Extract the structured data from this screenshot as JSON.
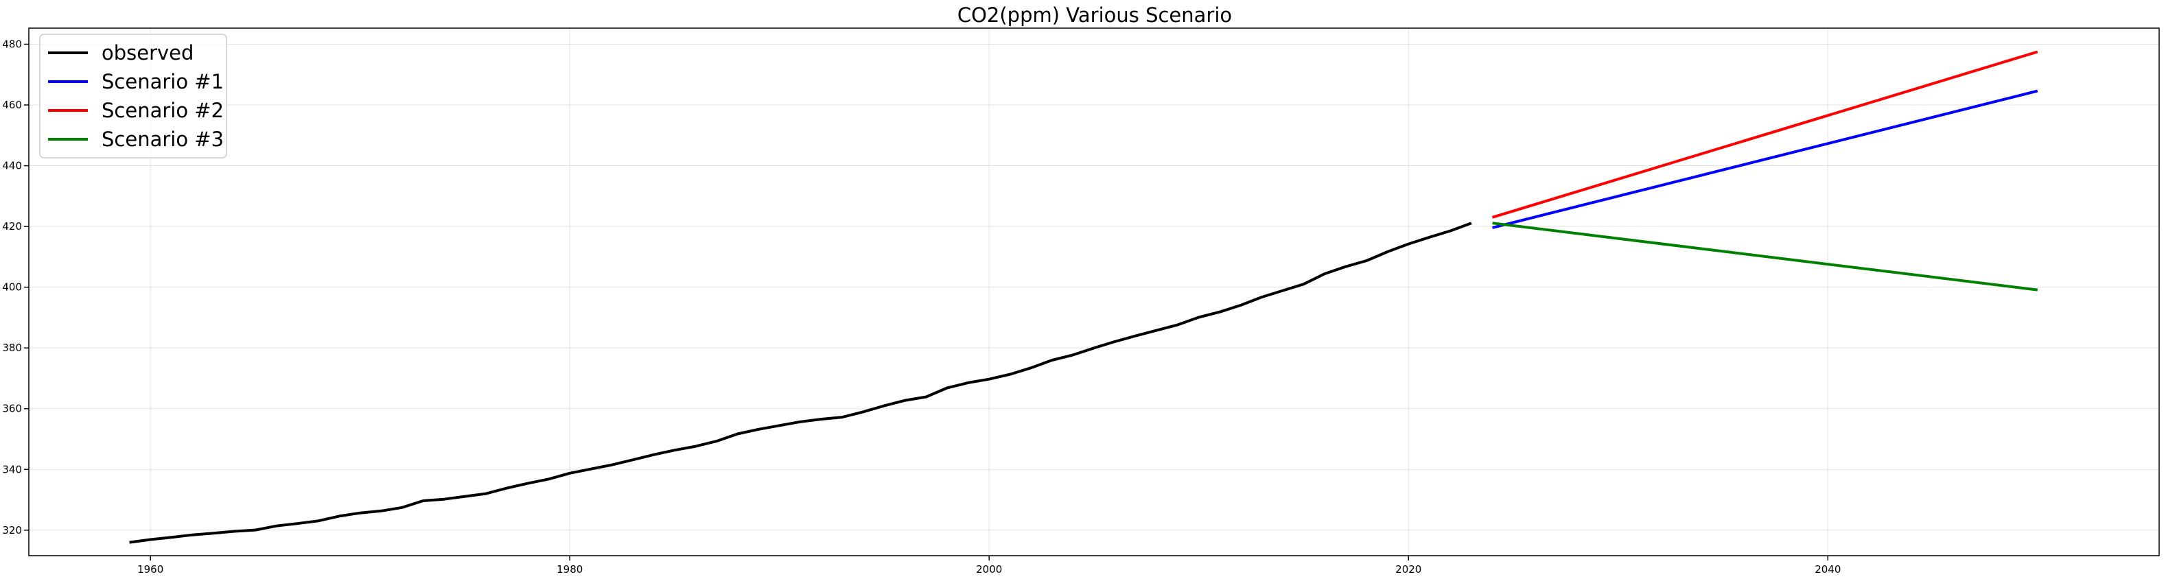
{
  "chart_data": {
    "type": "line",
    "title": "CO2(ppm) Various Scenario",
    "xlabel": "",
    "ylabel": "",
    "xlim": [
      1954.2,
      2055.8
    ],
    "ylim": [
      311.6,
      485.3
    ],
    "x_ticks": [
      1960,
      1980,
      2000,
      2020,
      2040
    ],
    "y_ticks": [
      320,
      340,
      360,
      380,
      400,
      420,
      440,
      460,
      480
    ],
    "grid": true,
    "legend_position": "top-left",
    "series": [
      {
        "name": "observed",
        "color": "#000000",
        "x": [
          1959,
          1960,
          1961,
          1962,
          1963,
          1964,
          1965,
          1966,
          1967,
          1968,
          1969,
          1970,
          1971,
          1972,
          1973,
          1974,
          1975,
          1976,
          1977,
          1978,
          1979,
          1980,
          1981,
          1982,
          1983,
          1984,
          1985,
          1986,
          1987,
          1988,
          1989,
          1990,
          1991,
          1992,
          1993,
          1994,
          1995,
          1996,
          1997,
          1998,
          1999,
          2000,
          2001,
          2002,
          2003,
          2004,
          2005,
          2006,
          2007,
          2008,
          2009,
          2010,
          2011,
          2012,
          2013,
          2014,
          2015,
          2016,
          2017,
          2018,
          2019,
          2020,
          2021,
          2022,
          2023
        ],
        "y": [
          315.98,
          316.91,
          317.64,
          318.45,
          318.99,
          319.62,
          320.04,
          321.37,
          322.18,
          323.05,
          324.62,
          325.68,
          326.32,
          327.46,
          329.68,
          330.19,
          331.12,
          332.03,
          333.84,
          335.41,
          336.84,
          338.76,
          340.12,
          341.48,
          343.15,
          344.85,
          346.35,
          347.61,
          349.31,
          351.69,
          353.2,
          354.45,
          355.7,
          356.54,
          357.21,
          358.96,
          360.97,
          362.74,
          363.88,
          366.84,
          368.54,
          369.71,
          371.32,
          373.45,
          375.98,
          377.7,
          379.98,
          382.09,
          384.02,
          385.83,
          387.64,
          390.1,
          391.85,
          394.06,
          396.74,
          398.87,
          401.01,
          404.41,
          406.76,
          408.72,
          411.66,
          414.24,
          416.45,
          418.56,
          421.08
        ]
      },
      {
        "name": "Scenario #1",
        "color": "#0000ff",
        "x": [
          2024,
          2050
        ],
        "y": [
          419.6,
          464.6
        ]
      },
      {
        "name": "Scenario #2",
        "color": "#ff0000",
        "x": [
          2024,
          2050
        ],
        "y": [
          423.0,
          477.5
        ]
      },
      {
        "name": "Scenario #3",
        "color": "#008000",
        "x": [
          2024,
          2050
        ],
        "y": [
          421.1,
          399.1
        ]
      }
    ]
  }
}
